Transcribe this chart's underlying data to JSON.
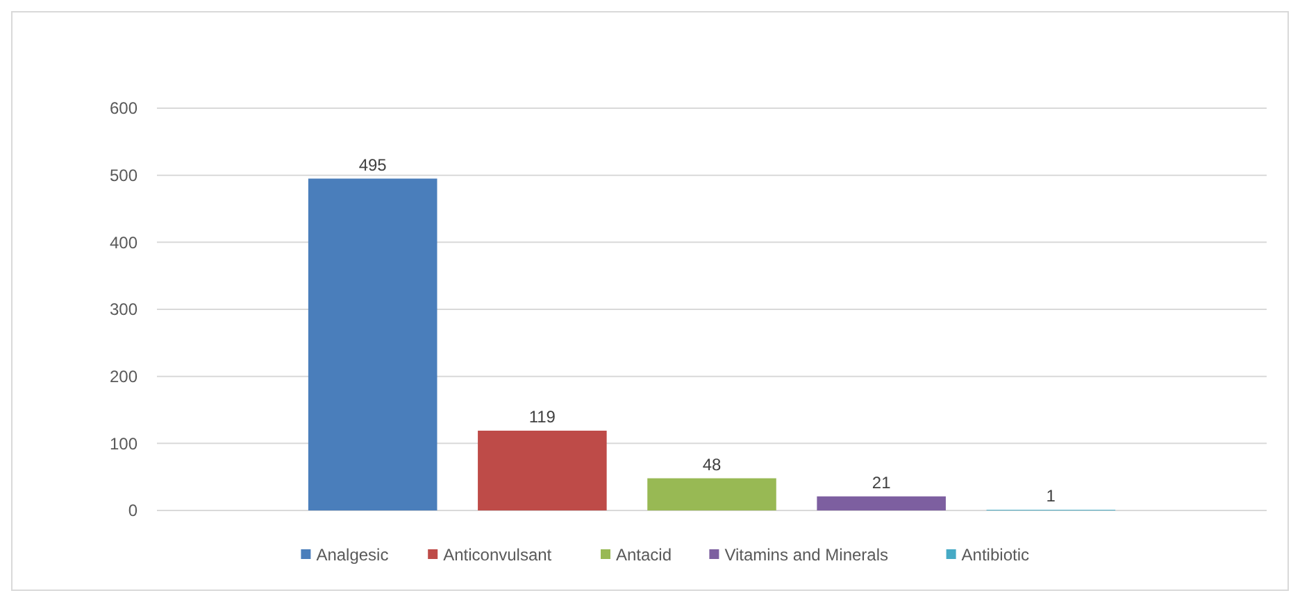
{
  "chart_data": {
    "type": "bar",
    "categories": [
      null
    ],
    "series": [
      {
        "name": "Analgesic",
        "color": "#4a7ebb",
        "values": [
          495
        ]
      },
      {
        "name": "Anticonvulsant",
        "color": "#be4b48",
        "values": [
          119
        ]
      },
      {
        "name": "Antacid",
        "color": "#98b954",
        "values": [
          48
        ]
      },
      {
        "name": "Vitamins and Minerals",
        "color": "#7d5fa0",
        "values": [
          21
        ]
      },
      {
        "name": "Antibiotic",
        "color": "#46aac5",
        "values": [
          1
        ]
      }
    ],
    "ylim": [
      0,
      600
    ],
    "yticks": [
      0,
      100,
      200,
      300,
      400,
      500,
      600
    ],
    "grid": "y",
    "legend": "bottom",
    "data_labels": true
  }
}
